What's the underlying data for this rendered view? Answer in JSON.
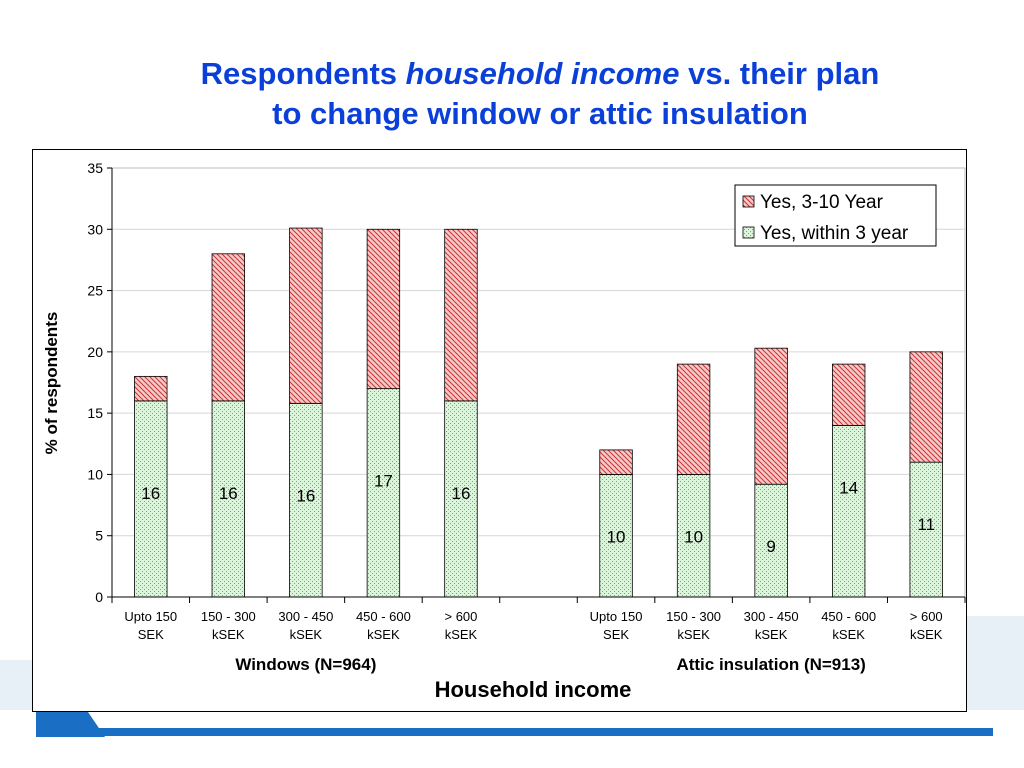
{
  "slide": {
    "title_part1": "Respondents ",
    "title_italic": "household income",
    "title_part2": "  vs. their plan",
    "title_line2": "to change window or attic insulation"
  },
  "colors": {
    "title": "#0a3fd9",
    "yes_3_10_fill": "#f6c9c9",
    "yes_3_10_hatch": "#cc3333",
    "within_3_fill": "#dbf5db",
    "within_3_dots": "#63b563",
    "footer_blue": "#1a6fc4",
    "footer_light": "#d8e6f2"
  },
  "chart_data": {
    "type": "bar",
    "stacked": true,
    "ylabel": "% of respondents",
    "xlabel": "Household income",
    "ylim": [
      0,
      35
    ],
    "yticks": [
      0,
      5,
      10,
      15,
      20,
      25,
      30,
      35
    ],
    "grid": true,
    "legend_position": "top-right",
    "groups": [
      {
        "label": "Windows (N=964)",
        "categories": [
          [
            "Upto 150",
            "SEK"
          ],
          [
            "150 - 300",
            "kSEK"
          ],
          [
            "300 - 450",
            "kSEK"
          ],
          [
            "450 - 600",
            "kSEK"
          ],
          [
            "> 600",
            "kSEK"
          ]
        ],
        "within_3_year": [
          16,
          16,
          15.8,
          17,
          16
        ],
        "within_3_year_labels": [
          "16",
          "16",
          "16",
          "17",
          "16"
        ],
        "three_to_ten_year": [
          2,
          12,
          14.3,
          13,
          14
        ]
      },
      {
        "label": "Attic insulation (N=913)",
        "categories": [
          [
            "Upto 150",
            "SEK"
          ],
          [
            "150 - 300",
            "kSEK"
          ],
          [
            "300 - 450",
            "kSEK"
          ],
          [
            "450 - 600",
            "kSEK"
          ],
          [
            "> 600",
            "kSEK"
          ]
        ],
        "within_3_year": [
          10,
          10,
          9.2,
          14,
          11
        ],
        "within_3_year_labels": [
          "10",
          "10",
          "9",
          "14",
          "11"
        ],
        "three_to_ten_year": [
          2,
          9,
          11.1,
          5,
          9
        ]
      }
    ],
    "series": [
      {
        "name": "Yes, 3-10 Year",
        "key": "three_to_ten_year"
      },
      {
        "name": "Yes, within 3 year",
        "key": "within_3_year"
      }
    ]
  }
}
